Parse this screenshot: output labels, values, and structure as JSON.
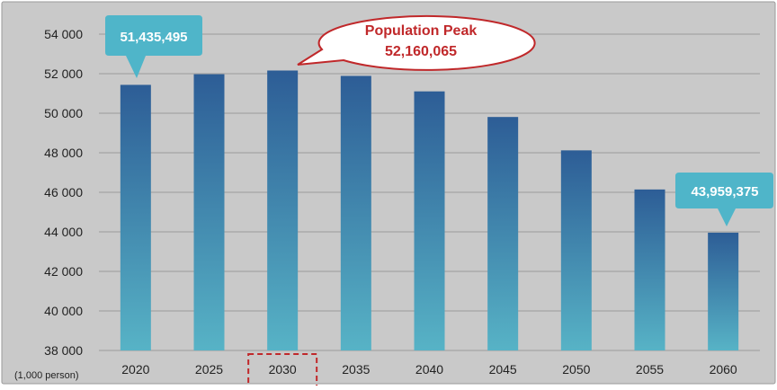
{
  "colors": {
    "background": "#c9c9c9",
    "bar_top": "#2d5d96",
    "bar_bottom": "#57b3c6",
    "callout_teal": "#4fb5c9",
    "callout_red": "#c0282a",
    "gridline": "#9a9a9a"
  },
  "chart_data": {
    "type": "bar",
    "categories": [
      "2020",
      "2025",
      "2030",
      "2035",
      "2040",
      "2045",
      "2050",
      "2055",
      "2060"
    ],
    "values": [
      51435,
      51972,
      52160,
      51888,
      51105,
      49810,
      48121,
      46143,
      43959
    ],
    "ylim": [
      38000,
      54000
    ],
    "yticks": [
      "38 000",
      "40 000",
      "42 000",
      "44 000",
      "46 000",
      "48 000",
      "50 000",
      "52 000",
      "54 000"
    ],
    "ytick_values": [
      38000,
      40000,
      42000,
      44000,
      46000,
      48000,
      50000,
      52000,
      54000
    ],
    "unit_label": "(1,000 person)",
    "grid": true,
    "highlighted_category": "2030",
    "annotations": {
      "start_value": "51,435,495",
      "peak_title": "Population Peak",
      "peak_value": "52,160,065",
      "end_value": "43,959,375"
    }
  }
}
